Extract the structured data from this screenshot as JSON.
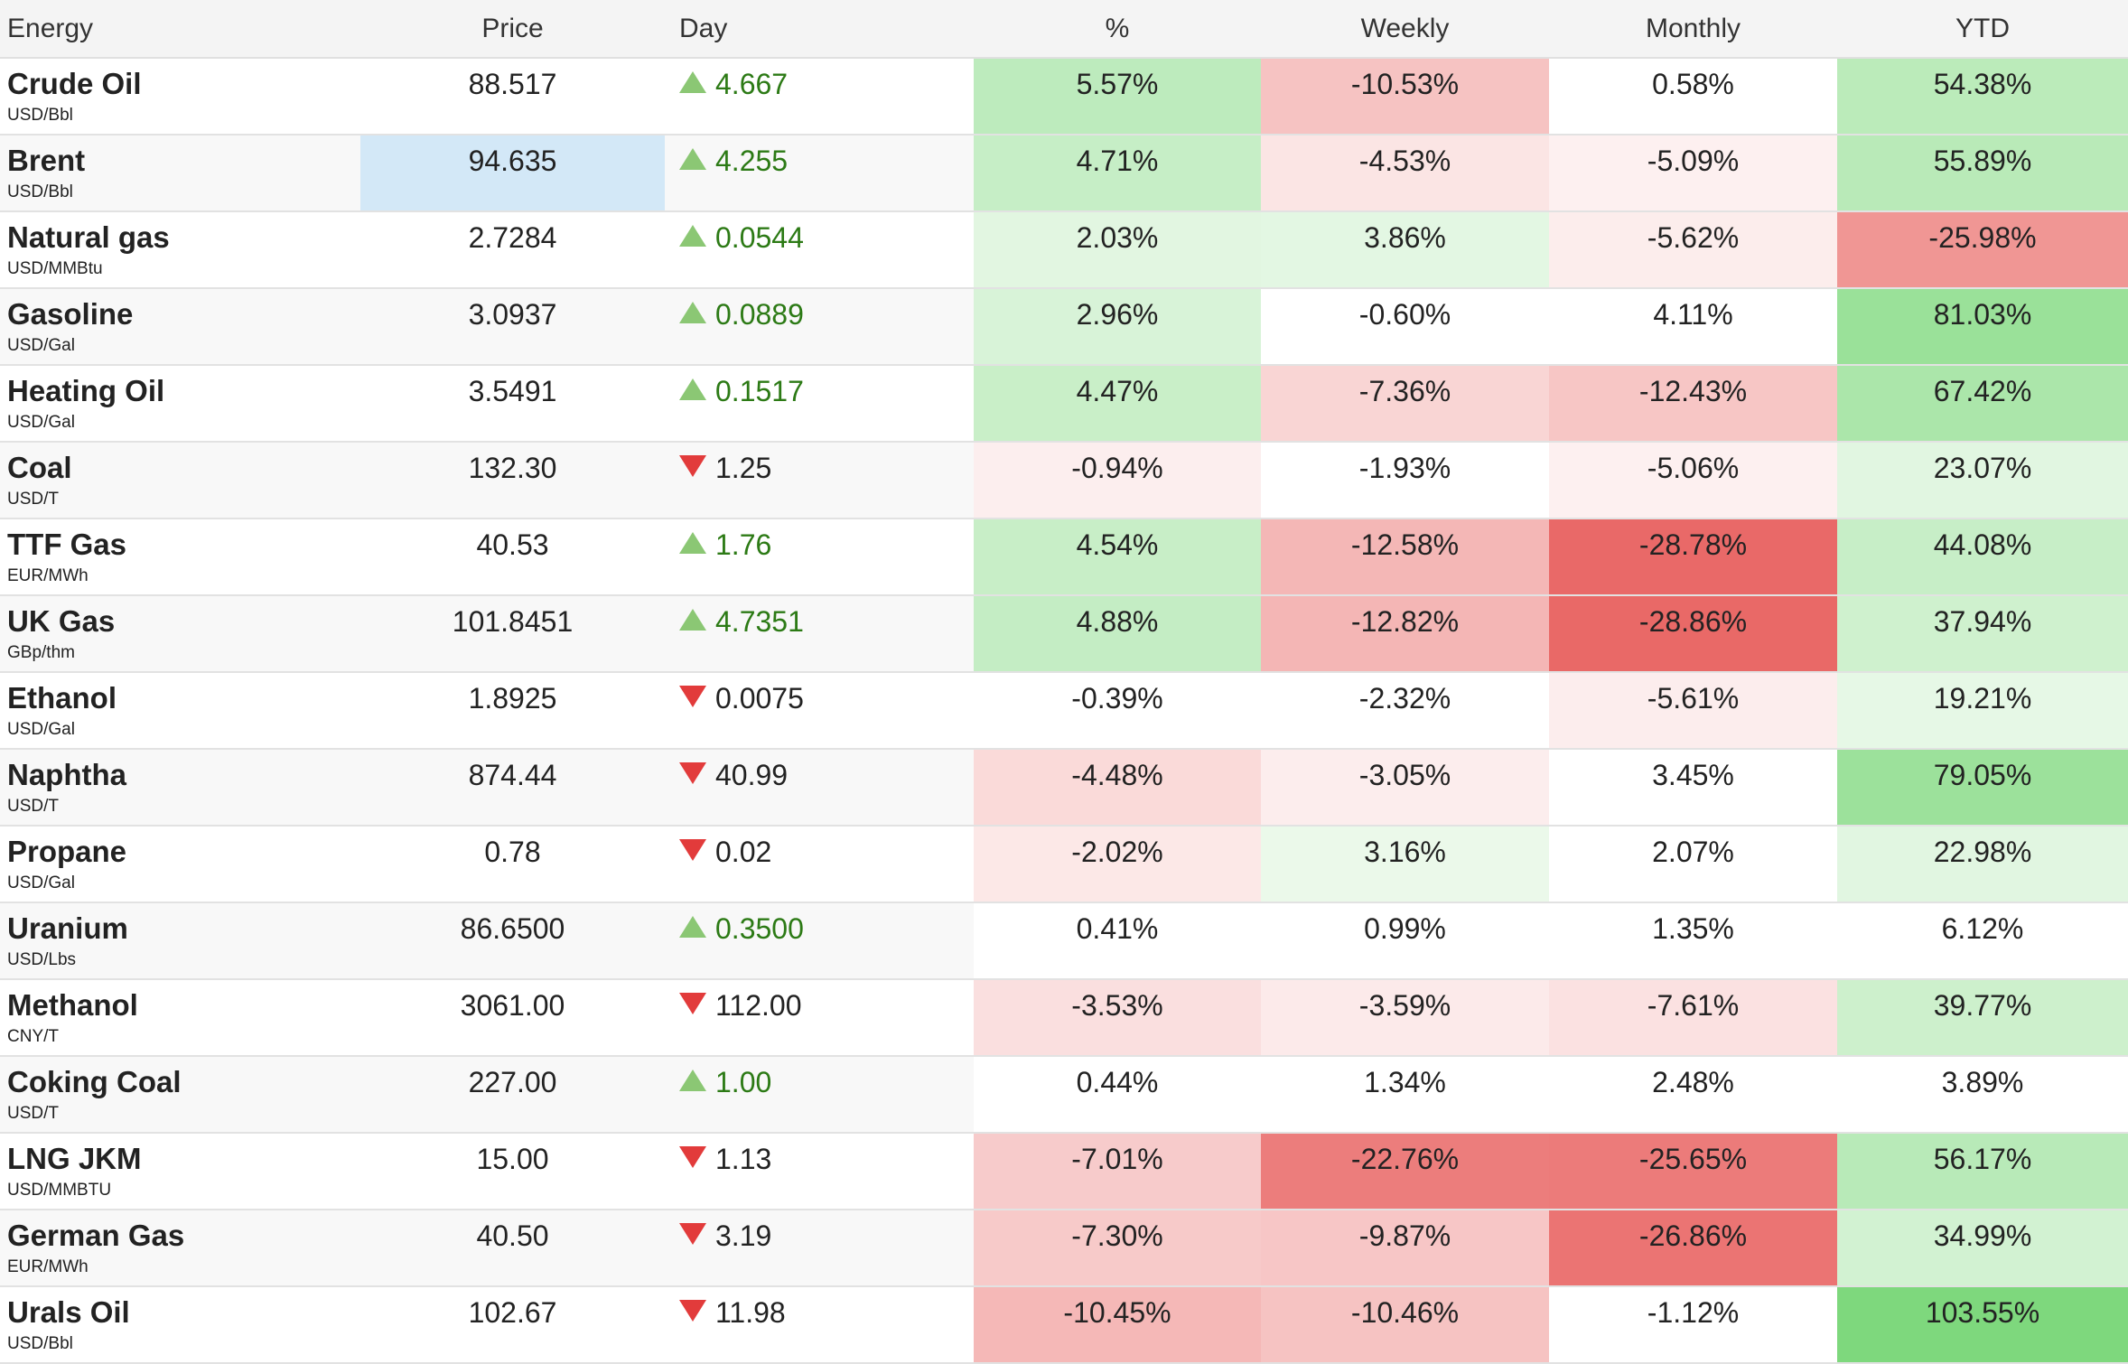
{
  "headers": {
    "name": "Energy",
    "price": "Price",
    "day": "Day",
    "pct": "%",
    "weekly": "Weekly",
    "monthly": "Monthly",
    "ytd": "YTD"
  },
  "colors": {
    "up_arrow": "#8bc774",
    "down_arrow": "#e23b3b",
    "up_text": "#2c7a15",
    "highlight_cell": "#d3e8f7"
  },
  "rows": [
    {
      "name": "Crude Oil",
      "unit": "USD/Bbl",
      "price": "88.517",
      "day": "4.667",
      "dir": "up",
      "pct": "5.57%",
      "weekly": "-10.53%",
      "monthly": "0.58%",
      "ytd": "54.38%"
    },
    {
      "name": "Brent",
      "unit": "USD/Bbl",
      "price": "94.635",
      "day": "4.255",
      "dir": "up",
      "pct": "4.71%",
      "weekly": "-4.53%",
      "monthly": "-5.09%",
      "ytd": "55.89%",
      "highlight": true
    },
    {
      "name": "Natural gas",
      "unit": "USD/MMBtu",
      "price": "2.7284",
      "day": "0.0544",
      "dir": "up",
      "pct": "2.03%",
      "weekly": "3.86%",
      "monthly": "-5.62%",
      "ytd": "-25.98%"
    },
    {
      "name": "Gasoline",
      "unit": "USD/Gal",
      "price": "3.0937",
      "day": "0.0889",
      "dir": "up",
      "pct": "2.96%",
      "weekly": "-0.60%",
      "monthly": "4.11%",
      "ytd": "81.03%"
    },
    {
      "name": "Heating Oil",
      "unit": "USD/Gal",
      "price": "3.5491",
      "day": "0.1517",
      "dir": "up",
      "pct": "4.47%",
      "weekly": "-7.36%",
      "monthly": "-12.43%",
      "ytd": "67.42%"
    },
    {
      "name": "Coal",
      "unit": "USD/T",
      "price": "132.30",
      "day": "1.25",
      "dir": "down",
      "pct": "-0.94%",
      "weekly": "-1.93%",
      "monthly": "-5.06%",
      "ytd": "23.07%"
    },
    {
      "name": "TTF Gas",
      "unit": "EUR/MWh",
      "price": "40.53",
      "day": "1.76",
      "dir": "up",
      "pct": "4.54%",
      "weekly": "-12.58%",
      "monthly": "-28.78%",
      "ytd": "44.08%"
    },
    {
      "name": "UK Gas",
      "unit": "GBp/thm",
      "price": "101.8451",
      "day": "4.7351",
      "dir": "up",
      "pct": "4.88%",
      "weekly": "-12.82%",
      "monthly": "-28.86%",
      "ytd": "37.94%"
    },
    {
      "name": "Ethanol",
      "unit": "USD/Gal",
      "price": "1.8925",
      "day": "0.0075",
      "dir": "down",
      "pct": "-0.39%",
      "weekly": "-2.32%",
      "monthly": "-5.61%",
      "ytd": "19.21%"
    },
    {
      "name": "Naphtha",
      "unit": "USD/T",
      "price": "874.44",
      "day": "40.99",
      "dir": "down",
      "pct": "-4.48%",
      "weekly": "-3.05%",
      "monthly": "3.45%",
      "ytd": "79.05%"
    },
    {
      "name": "Propane",
      "unit": "USD/Gal",
      "price": "0.78",
      "day": "0.02",
      "dir": "down",
      "pct": "-2.02%",
      "weekly": "3.16%",
      "monthly": "2.07%",
      "ytd": "22.98%"
    },
    {
      "name": "Uranium",
      "unit": "USD/Lbs",
      "price": "86.6500",
      "day": "0.3500",
      "dir": "up",
      "pct": "0.41%",
      "weekly": "0.99%",
      "monthly": "1.35%",
      "ytd": "6.12%"
    },
    {
      "name": "Methanol",
      "unit": "CNY/T",
      "price": "3061.00",
      "day": "112.00",
      "dir": "down",
      "pct": "-3.53%",
      "weekly": "-3.59%",
      "monthly": "-7.61%",
      "ytd": "39.77%"
    },
    {
      "name": "Coking Coal",
      "unit": "USD/T",
      "price": "227.00",
      "day": "1.00",
      "dir": "up",
      "pct": "0.44%",
      "weekly": "1.34%",
      "monthly": "2.48%",
      "ytd": "3.89%"
    },
    {
      "name": "LNG JKM",
      "unit": "USD/MMBTU",
      "price": "15.00",
      "day": "1.13",
      "dir": "down",
      "pct": "-7.01%",
      "weekly": "-22.76%",
      "monthly": "-25.65%",
      "ytd": "56.17%"
    },
    {
      "name": "German Gas",
      "unit": "EUR/MWh",
      "price": "40.50",
      "day": "3.19",
      "dir": "down",
      "pct": "-7.30%",
      "weekly": "-9.87%",
      "monthly": "-26.86%",
      "ytd": "34.99%"
    },
    {
      "name": "Urals Oil",
      "unit": "USD/Bbl",
      "price": "102.67",
      "day": "11.98",
      "dir": "down",
      "pct": "-10.45%",
      "weekly": "-10.46%",
      "monthly": "-1.12%",
      "ytd": "103.55%"
    }
  ]
}
